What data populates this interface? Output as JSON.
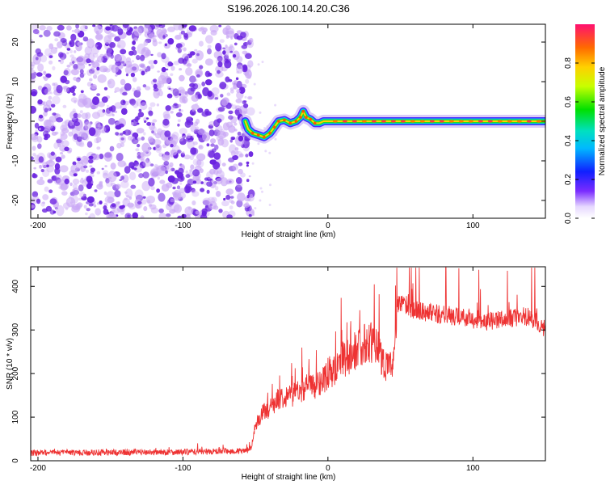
{
  "figure_title": "S196.2026.100.14.20.C36",
  "colors": {
    "line": "#ee3333",
    "scatter_purple": "#6a22e0",
    "scatter_light": "#c9a7f5"
  },
  "chart_data": [
    {
      "type": "heatmap",
      "title": "S196.2026.100.14.20.C36",
      "xlabel": "Height of straight line (km)",
      "ylabel": "Frequency (Hz)",
      "xlim": [
        -205,
        150
      ],
      "ylim": [
        -24.5,
        24.5
      ],
      "xticks": [
        -200,
        -100,
        0,
        100
      ],
      "yticks": [
        -20,
        -10,
        0,
        10,
        20
      ],
      "noise_region_x": [
        -205,
        -57
      ],
      "ridge_points": [
        [
          -57,
          0
        ],
        [
          -55,
          -2
        ],
        [
          -52,
          -3
        ],
        [
          -48,
          -3.5
        ],
        [
          -44,
          -4
        ],
        [
          -40,
          -3
        ],
        [
          -37,
          -1.5
        ],
        [
          -34,
          0
        ],
        [
          -30,
          0.3
        ],
        [
          -26,
          -0.5
        ],
        [
          -22,
          0
        ],
        [
          -19,
          1
        ],
        [
          -17,
          2.5
        ],
        [
          -15,
          1
        ],
        [
          -12,
          0.5
        ],
        [
          -9,
          -0.5
        ],
        [
          -6,
          -0.5
        ],
        [
          -3,
          0
        ],
        [
          0,
          0
        ],
        [
          150,
          0
        ]
      ],
      "colorbar": {
        "label": "Normalized spectral amplitude",
        "ticks": [
          "0.0",
          "0.2",
          "0.4",
          "0.6",
          "0.8"
        ],
        "range": [
          0,
          1
        ]
      }
    },
    {
      "type": "line",
      "xlabel": "Height of straight line (km)",
      "ylabel": "SNR (10 * v/v)",
      "xlim": [
        -205,
        150
      ],
      "ylim": [
        0,
        445
      ],
      "xticks": [
        -200,
        -100,
        0,
        100
      ],
      "yticks": [
        0,
        100,
        200,
        300,
        400
      ],
      "series": [
        {
          "name": "SNR",
          "x": [
            -205,
            -150,
            -100,
            -60,
            -56,
            -53,
            -50,
            -45,
            -40,
            -35,
            -30,
            -25,
            -20,
            -15,
            -10,
            -5,
            0,
            5,
            10,
            15,
            20,
            25,
            30,
            35,
            38,
            42,
            45,
            47,
            48,
            50,
            55,
            60,
            70,
            80,
            90,
            100,
            110,
            120,
            130,
            140,
            150
          ],
          "y": [
            18,
            19,
            20,
            22,
            22,
            30,
            80,
            110,
            120,
            140,
            150,
            150,
            160,
            170,
            170,
            180,
            200,
            210,
            230,
            240,
            255,
            270,
            270,
            265,
            225,
            215,
            220,
            300,
            360,
            360,
            355,
            345,
            340,
            335,
            330,
            325,
            320,
            322,
            330,
            330,
            300
          ]
        }
      ]
    }
  ]
}
